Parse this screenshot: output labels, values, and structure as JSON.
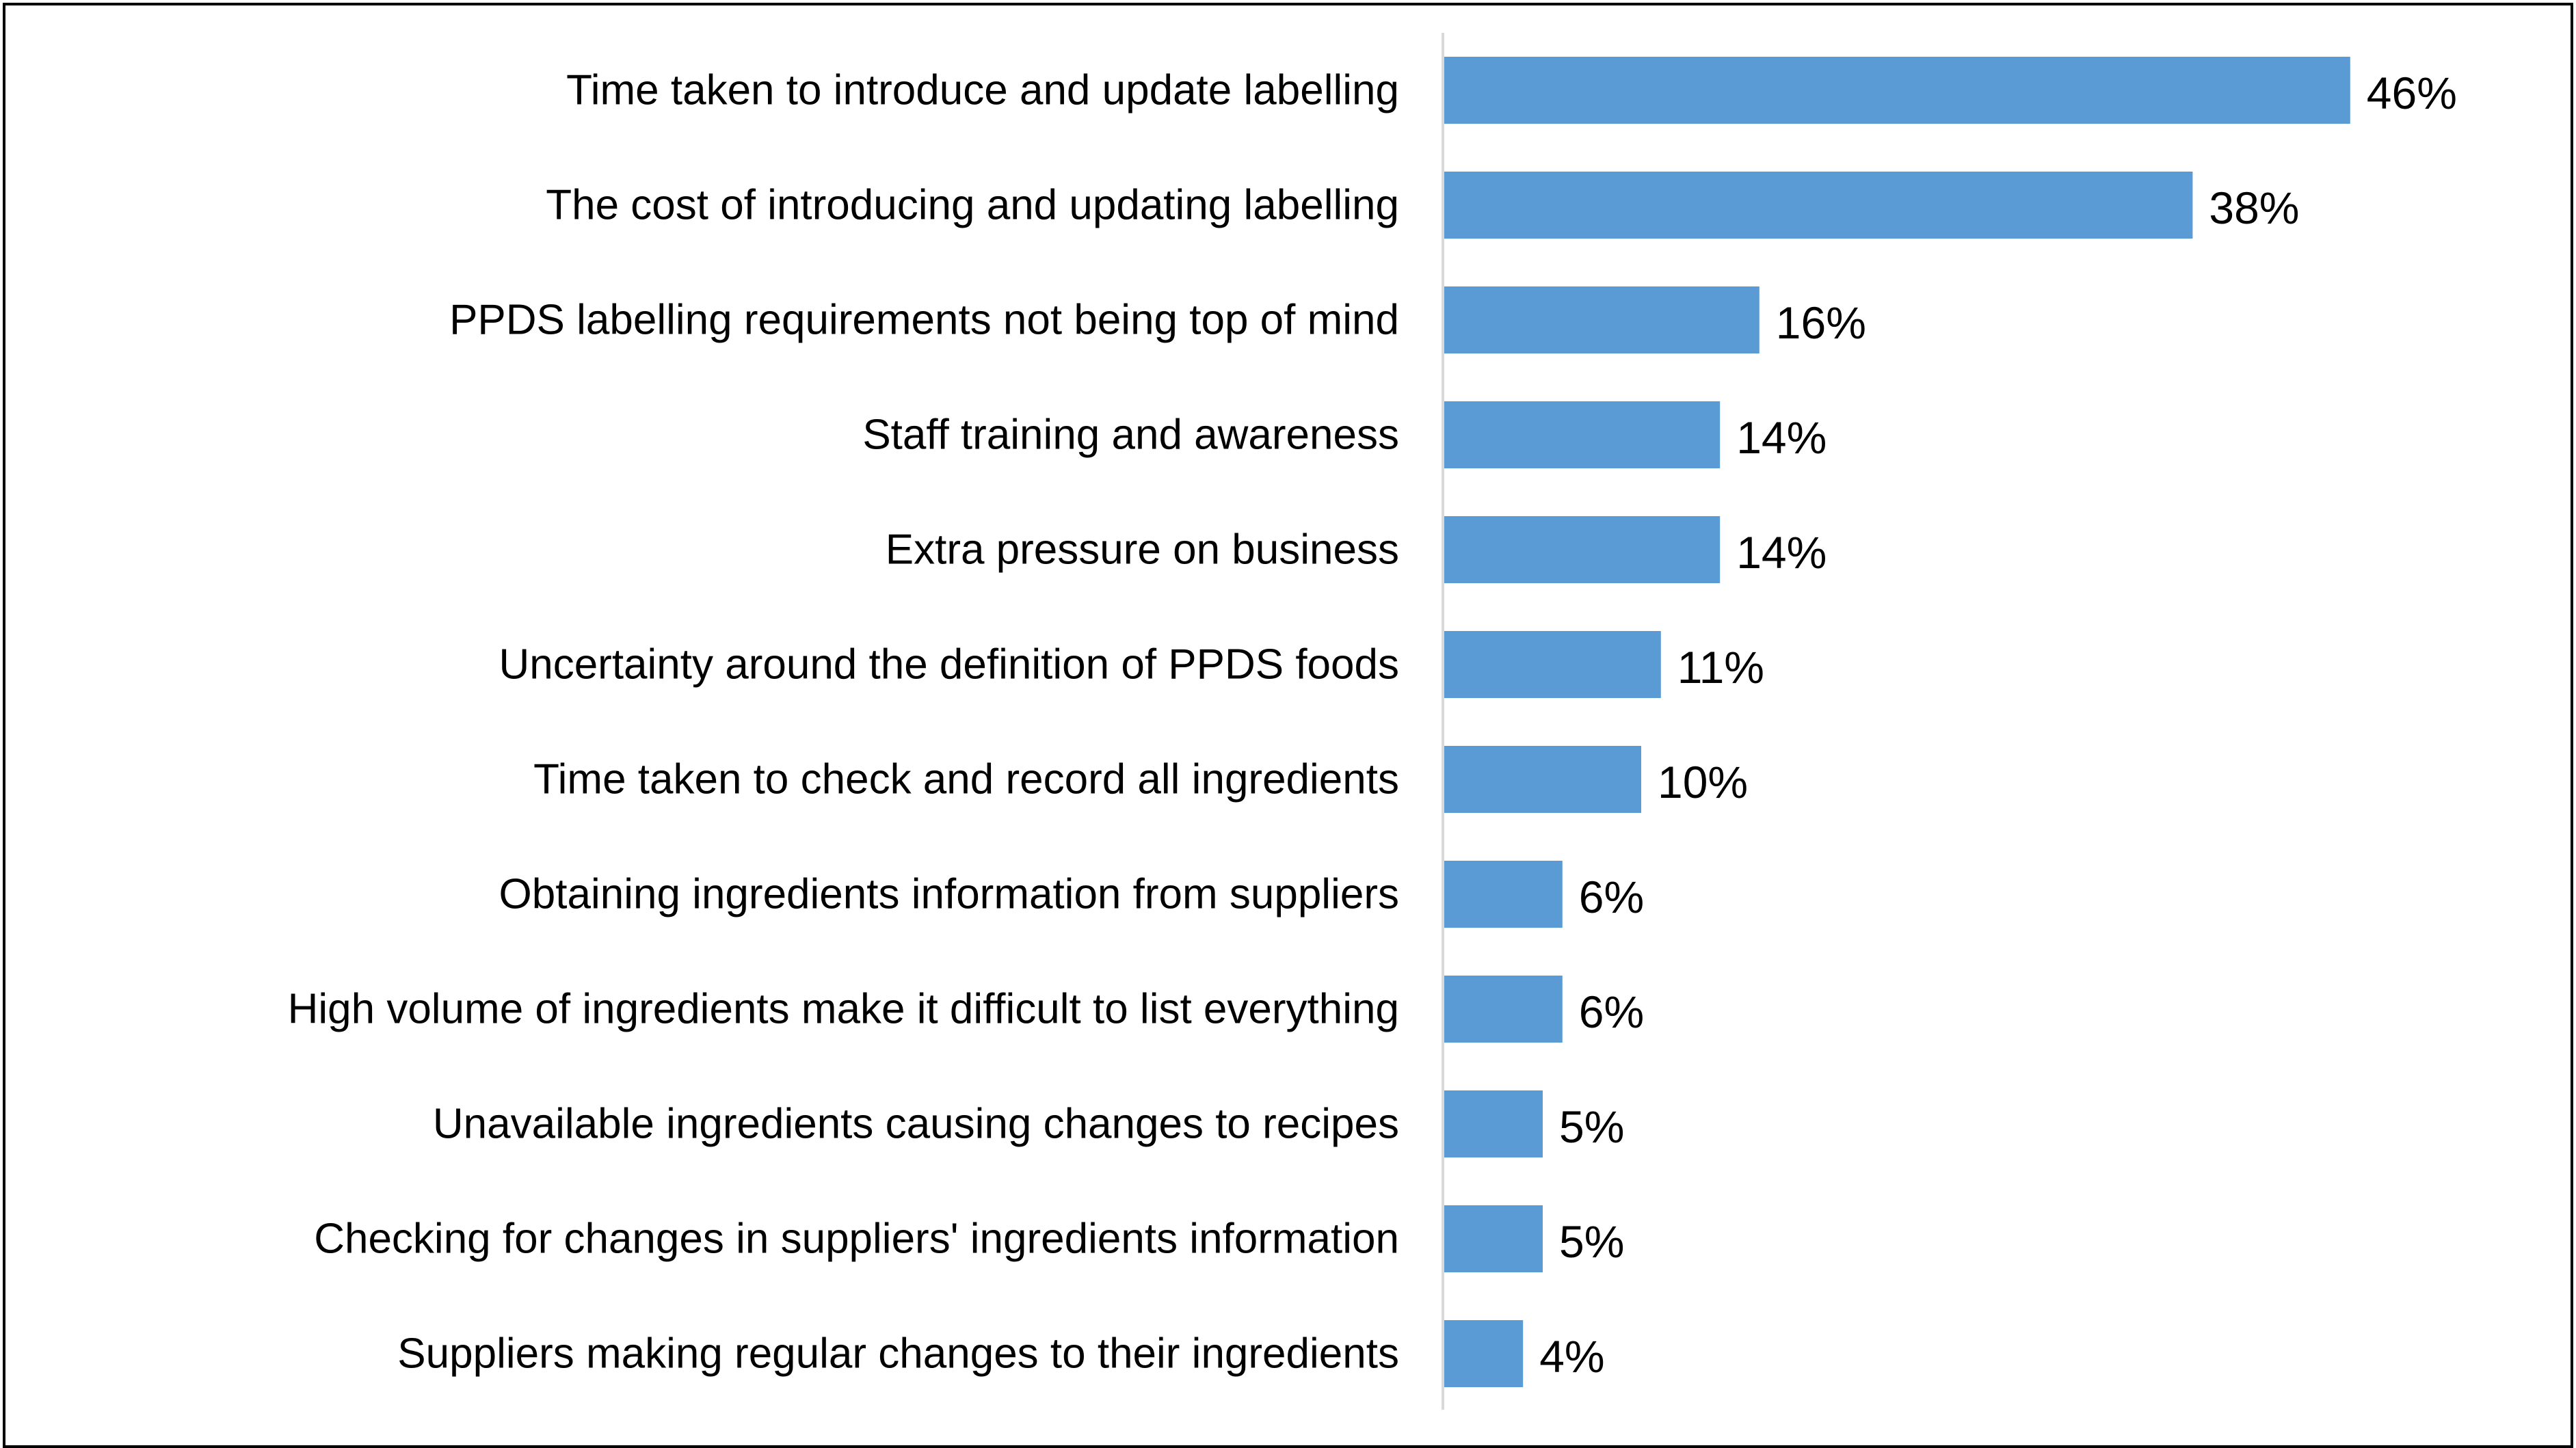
{
  "chart_data": {
    "type": "bar",
    "orientation": "horizontal",
    "categories": [
      "Time taken to introduce and update labelling",
      "The cost of introducing and updating labelling",
      "PPDS labelling requirements not being top of mind",
      "Staff training and awareness",
      "Extra pressure on business",
      "Uncertainty around the definition of PPDS foods",
      "Time taken to check and record all ingredients",
      "Obtaining ingredients information from suppliers",
      "High volume of ingredients make it difficult to list everything",
      "Unavailable ingredients causing changes to recipes",
      "Checking for changes in suppliers' ingredients information",
      "Suppliers making regular changes to their ingredients"
    ],
    "values": [
      46,
      38,
      16,
      14,
      14,
      11,
      10,
      6,
      6,
      5,
      5,
      4
    ],
    "value_labels": [
      "46%",
      "38%",
      "16%",
      "14%",
      "14%",
      "11%",
      "10%",
      "6%",
      "6%",
      "5%",
      "5%",
      "4%"
    ],
    "unit": "%",
    "xlim": [
      0,
      50
    ],
    "grid": false,
    "legend": "none",
    "bar_color": "#5B9BD5",
    "axis_color": "#D9D9D9",
    "title": "",
    "xlabel": "",
    "ylabel": ""
  }
}
